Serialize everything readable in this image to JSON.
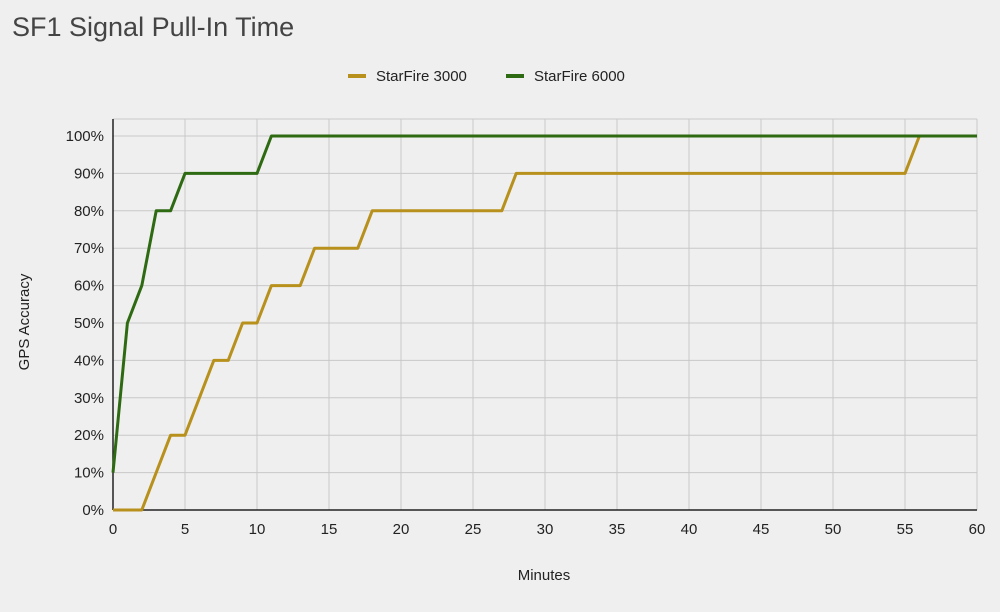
{
  "chart_data": {
    "type": "line",
    "title": "SF1 Signal Pull-In Time",
    "xlabel": "Minutes",
    "ylabel": "GPS Accuracy",
    "xlim": [
      0,
      60
    ],
    "ylim": [
      0,
      100
    ],
    "x_ticks": [
      "0",
      "5",
      "10",
      "15",
      "20",
      "25",
      "30",
      "35",
      "40",
      "45",
      "50",
      "55",
      "60"
    ],
    "y_ticks": [
      "0%",
      "10%",
      "20%",
      "30%",
      "40%",
      "50%",
      "60%",
      "70%",
      "80%",
      "90%",
      "100%"
    ],
    "grid": true,
    "legend_position": "top-center",
    "series": [
      {
        "name": "StarFire 3000",
        "color": "#b8901c",
        "points": [
          [
            0,
            0
          ],
          [
            2,
            0
          ],
          [
            4,
            20
          ],
          [
            5,
            20
          ],
          [
            7,
            40
          ],
          [
            8,
            40
          ],
          [
            9,
            50
          ],
          [
            10,
            50
          ],
          [
            11,
            60
          ],
          [
            13,
            60
          ],
          [
            14,
            70
          ],
          [
            17,
            70
          ],
          [
            18,
            80
          ],
          [
            27,
            80
          ],
          [
            28,
            90
          ],
          [
            55,
            90
          ],
          [
            56,
            100
          ],
          [
            60,
            100
          ]
        ]
      },
      {
        "name": "StarFire 6000",
        "color": "#2e6a12",
        "points": [
          [
            0,
            10
          ],
          [
            1,
            50
          ],
          [
            2,
            60
          ],
          [
            3,
            80
          ],
          [
            4,
            80
          ],
          [
            5,
            90
          ],
          [
            10,
            90
          ],
          [
            11,
            100
          ],
          [
            60,
            100
          ]
        ]
      }
    ]
  }
}
